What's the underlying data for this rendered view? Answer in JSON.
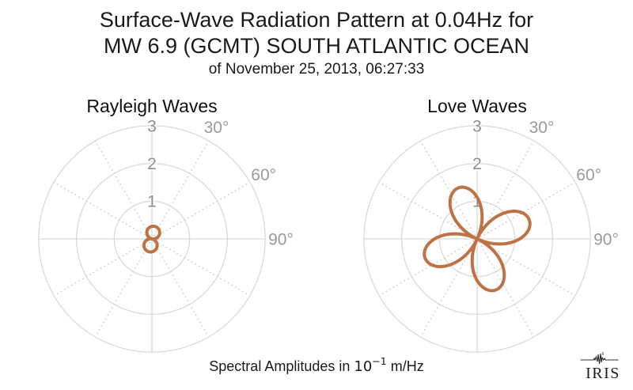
{
  "header": {
    "title_line1": "Surface-Wave Radiation Pattern at 0.04Hz for",
    "title_line2": "MW 6.9 (GCMT) SOUTH ATLANTIC OCEAN",
    "title_line3": "of November 25, 2013, 06:27:33"
  },
  "footer": {
    "caption_prefix": "Spectral Amplitudes in ",
    "unit_base": "10",
    "unit_exponent": "−1",
    "unit_suffix": " m/Hz"
  },
  "logo": {
    "text": "IRIS"
  },
  "colors": {
    "pattern": "#bf7243",
    "grid": "#d9d9d9",
    "spoke_dots": "#cccccc",
    "tick_label": "#8e8e8e",
    "angle_label": "#9a9a9a"
  },
  "chart_data": [
    {
      "type": "polar",
      "title": "Rayleigh Waves",
      "r_ticks": [
        "1",
        "2",
        "3"
      ],
      "r_tick_values": [
        1,
        2,
        3
      ],
      "r_max": 3,
      "theta_zero": "north",
      "theta_direction": "clockwise",
      "theta_tick_labels": [
        {
          "deg": 30,
          "label": "30°"
        },
        {
          "deg": 60,
          "label": "60°"
        },
        {
          "deg": 90,
          "label": "90°"
        }
      ],
      "grid_spoke_step_deg": 30,
      "pattern": {
        "model": "lobes",
        "sharpness": 1,
        "lobes": [
          {
            "azimuth_deg": 12,
            "amplitude": 0.34
          },
          {
            "azimuth_deg": 192,
            "amplitude": 0.35
          }
        ]
      },
      "amplitude_units": "10^-1 m/Hz"
    },
    {
      "type": "polar",
      "title": "Love Waves",
      "r_ticks": [
        "1",
        "2",
        "3"
      ],
      "r_tick_values": [
        1,
        2,
        3
      ],
      "r_max": 3,
      "theta_zero": "north",
      "theta_direction": "clockwise",
      "theta_tick_labels": [
        {
          "deg": 30,
          "label": "30°"
        },
        {
          "deg": 60,
          "label": "60°"
        },
        {
          "deg": 90,
          "label": "90°"
        }
      ],
      "grid_spoke_step_deg": 30,
      "pattern": {
        "model": "lobes",
        "sharpness": 2,
        "lobes": [
          {
            "azimuth_deg": -20,
            "amplitude": 1.38
          },
          {
            "azimuth_deg": 70,
            "amplitude": 1.47
          },
          {
            "azimuth_deg": 160,
            "amplitude": 1.44
          },
          {
            "azimuth_deg": 250,
            "amplitude": 1.36
          }
        ]
      },
      "amplitude_units": "10^-1 m/Hz"
    }
  ]
}
